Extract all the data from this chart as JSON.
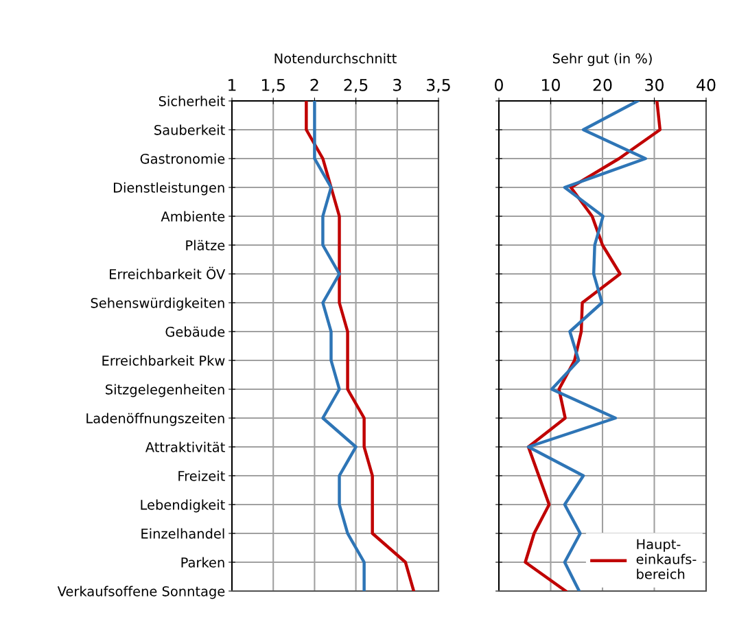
{
  "chart_data": [
    {
      "type": "line",
      "xlabel": "Notendurchschnitt",
      "orientation": "horizontal",
      "categories": [
        "Sicherheit",
        "Sauberkeit",
        "Gastronomie",
        "Dienstleistungen",
        "Ambiente",
        "Plätze",
        "Erreichbarkeit ÖV",
        "Sehenswürdigkeiten",
        "Gebäude",
        "Erreichbarkeit Pkw",
        "Sitzgelegenheiten",
        "Ladenöffnungszeiten",
        "Attraktivität",
        "Freizeit",
        "Lebendigkeit",
        "Einzelhandel",
        "Parken",
        "Verkaufsoffene Sonntage"
      ],
      "series": [
        {
          "color": "#c00000",
          "values": [
            1.9,
            1.9,
            2.1,
            2.2,
            2.3,
            2.3,
            2.3,
            2.3,
            2.4,
            2.4,
            2.4,
            2.6,
            2.6,
            2.7,
            2.7,
            2.7,
            3.1,
            3.2
          ]
        },
        {
          "color": "#2e75b6",
          "values": [
            2.0,
            2.0,
            2.0,
            2.2,
            2.1,
            2.1,
            2.3,
            2.1,
            2.2,
            2.2,
            2.3,
            2.1,
            2.5,
            2.3,
            2.3,
            2.4,
            2.6,
            2.6
          ]
        }
      ],
      "xlim": [
        1,
        3.5
      ],
      "xticks": [
        1,
        {
          "value": 1.5,
          "label": "1,5"
        },
        2,
        {
          "value": 2.5,
          "label": "2,5"
        },
        3,
        {
          "value": 3.5,
          "label": "3,5"
        }
      ],
      "grid": true,
      "marker": "none",
      "line_style": "solid"
    },
    {
      "type": "line",
      "xlabel": "Sehr gut (in %)",
      "orientation": "horizontal",
      "categories": [
        null,
        null,
        null,
        null,
        null,
        null,
        null,
        null,
        null,
        null,
        null,
        null,
        null,
        null,
        null,
        null,
        null,
        null
      ],
      "series": [
        {
          "name": "Haupt-\neinkaufs-\nbereich",
          "color": "#c00000",
          "values": [
            30.5,
            31.1,
            23.2,
            13.9,
            18.0,
            20.0,
            23.4,
            16.1,
            15.9,
            14.6,
            11.6,
            12.8,
            5.7,
            7.7,
            9.7,
            6.8,
            5.1,
            12.9
          ]
        },
        {
          "color": "#2e75b6",
          "values": [
            26.8,
            16.3,
            28.3,
            12.7,
            20.1,
            18.5,
            18.3,
            19.9,
            13.7,
            15.4,
            10.2,
            22.5,
            5.7,
            16.3,
            12.7,
            15.7,
            12.7,
            15.5
          ]
        }
      ],
      "xlim": [
        0,
        40
      ],
      "xticks": [
        0,
        10,
        20,
        30,
        40
      ],
      "grid": true,
      "marker": "none",
      "line_style": "solid",
      "tick_labels": "x",
      "legend": "bottom right"
    }
  ]
}
